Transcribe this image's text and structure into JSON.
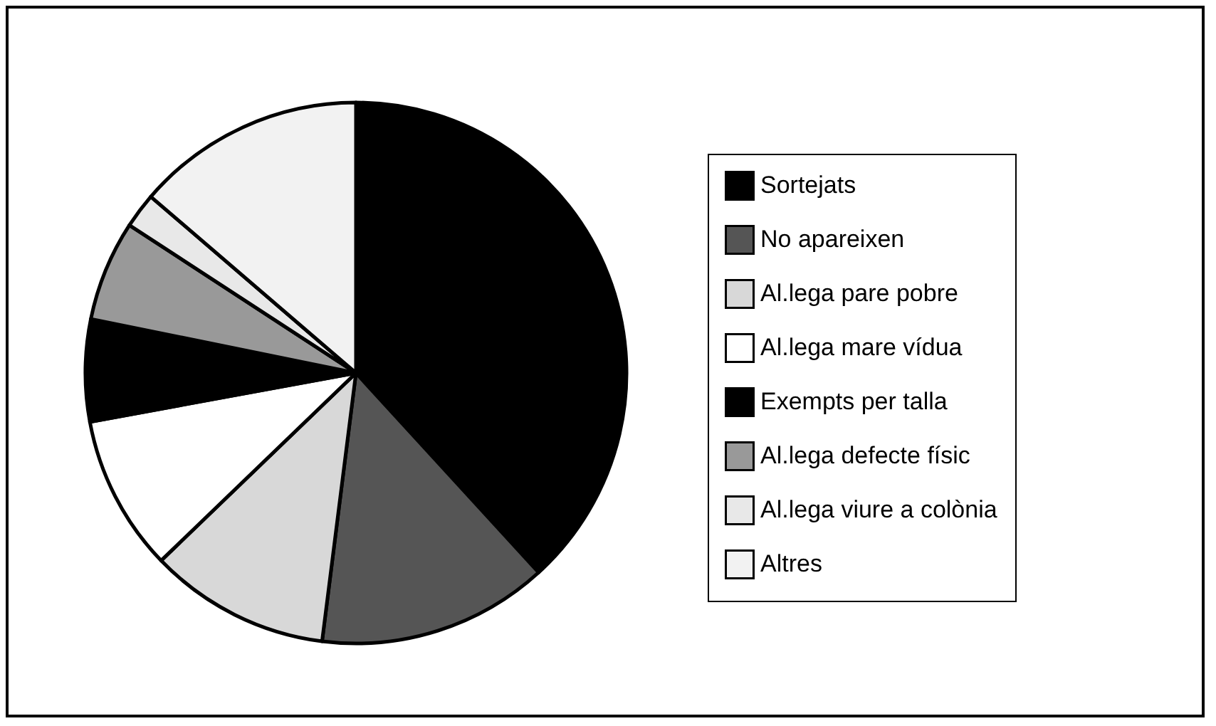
{
  "chart_data": {
    "type": "pie",
    "categories": [
      "Sortejats",
      "No apareixen",
      "Al.lega pare pobre",
      "Al.lega mare vídua",
      "Exempts per talla",
      "Al.lega defecte físic",
      "Al.lega viure a colònia",
      "Altres"
    ],
    "values": [
      38.2,
      13.8,
      10.8,
      9.3,
      6.1,
      6.0,
      2.1,
      13.7
    ],
    "colors": [
      "#000000",
      "#555555",
      "#d8d8d8",
      "#ffffff",
      "#000000",
      "#999999",
      "#e8e8e8",
      "#f2f2f2"
    ],
    "legend": "right"
  }
}
